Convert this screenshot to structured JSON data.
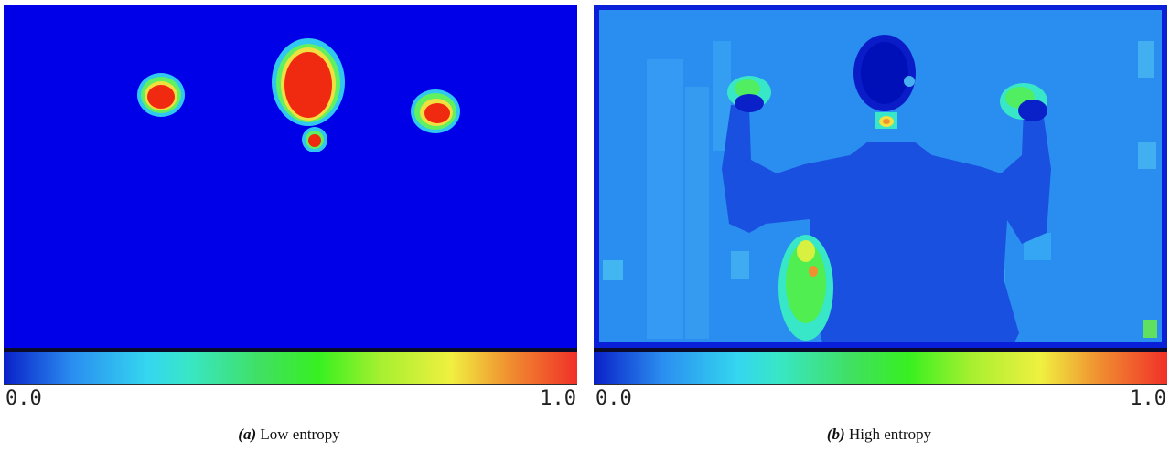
{
  "colors": {
    "low": "#0000e8",
    "high": "#f02010"
  },
  "panels": [
    {
      "label": "(a)",
      "caption": "Low entropy",
      "colorbar": {
        "min": "0.0",
        "max": "1.0"
      }
    },
    {
      "label": "(b)",
      "caption": "High entropy",
      "colorbar": {
        "min": "0.0",
        "max": "1.0"
      }
    }
  ]
}
